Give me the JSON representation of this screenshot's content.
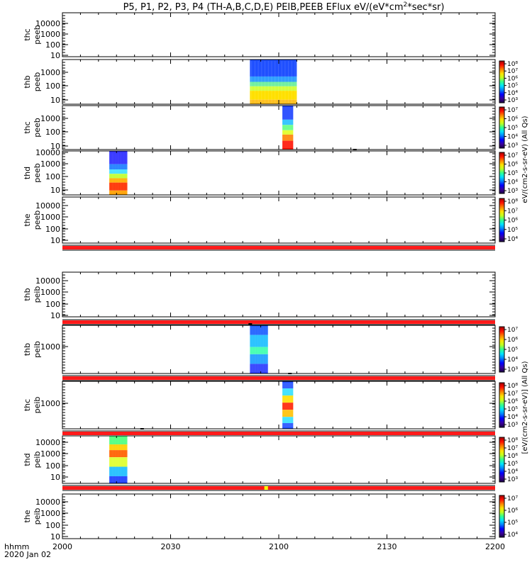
{
  "title": "P5, P1, P2, P3, P4 (TH-A,B,C,D,E) PEIB,PEEB EFlux eV/(eV*cm",
  "title_sup": "2",
  "title_tail": "*sec*sr)",
  "x_axis": {
    "ticks": [
      "2000",
      "2030",
      "2100",
      "2130",
      "2200"
    ],
    "label_line1": "hhmm",
    "label_line2": "2020 Jan 02"
  },
  "colors": {
    "flag_red": "#ff1a1a",
    "flag_yellow": "#ffff00"
  },
  "colorbar_labels": {
    "peeb": "eV/(cm2-s-sr-eV) (All Qs)",
    "peib": "[eV/(cm2-s-sr-eV)] (All Qs)"
  },
  "chart_data": {
    "type": "heatmap",
    "x_range_minutes": [
      0,
      120
    ],
    "panels": [
      {
        "label1": "thc",
        "label2": "peeb",
        "yticks": [
          "10000",
          "1000",
          "100",
          "10"
        ],
        "has_colorbar": false,
        "cbar_ticks": []
      },
      {
        "label1": "thb",
        "label2": "peeb",
        "yticks": [
          "1000",
          "100",
          "10"
        ],
        "has_colorbar": true,
        "cbar_ticks": [
          "10⁸",
          "10⁷",
          "10⁶",
          "10⁵",
          "10⁴",
          "10³"
        ],
        "spec": {
          "x_start": 52,
          "x_end": 65,
          "kind": "thb_peeb"
        }
      },
      {
        "label1": "thc",
        "label2": "peeb",
        "yticks": [
          "1000",
          "100",
          "10"
        ],
        "has_colorbar": true,
        "cbar_ticks": [
          "10⁷",
          "10⁶",
          "10⁵",
          "10⁴",
          "10³"
        ],
        "spec": {
          "x_start": 61,
          "x_end": 64,
          "kind": "thc_peeb"
        }
      },
      {
        "label1": "thd",
        "label2": "peeb",
        "yticks": [
          "10000",
          "1000",
          "100",
          "10"
        ],
        "has_colorbar": true,
        "cbar_ticks": [
          "10⁷",
          "10⁶",
          "10⁵",
          "10⁴",
          "10³"
        ],
        "spec": {
          "x_start": 13,
          "x_end": 18,
          "kind": "thd_peeb"
        }
      },
      {
        "label1": "the",
        "label2": "peeb",
        "yticks": [
          "10000",
          "1000",
          "100",
          "10"
        ],
        "has_colorbar": true,
        "cbar_ticks": [
          "10⁸",
          "10⁷",
          "10⁶",
          "10⁵",
          "10⁴"
        ]
      },
      {
        "label1": "thb",
        "label2": "peib",
        "yticks": [
          "10000",
          "1000",
          "100",
          "10"
        ],
        "has_colorbar": false,
        "cbar_ticks": []
      },
      {
        "label1": "thb",
        "label2": "peib",
        "yticks": [
          "1000"
        ],
        "has_colorbar": true,
        "cbar_ticks": [
          "10⁷",
          "10⁶",
          "10⁵",
          "10⁴",
          "10³"
        ],
        "spec": {
          "x_start": 52,
          "x_end": 57,
          "kind": "thb_peib"
        }
      },
      {
        "label1": "thc",
        "label2": "peib",
        "yticks": [
          "1000"
        ],
        "has_colorbar": true,
        "cbar_ticks": [
          "10⁸",
          "10⁷",
          "10⁶",
          "10⁵",
          "10⁴",
          "10³"
        ],
        "spec": {
          "x_start": 61,
          "x_end": 64,
          "kind": "thc_peib"
        }
      },
      {
        "label1": "thd",
        "label2": "peib",
        "yticks": [
          "10000",
          "1000",
          "100",
          "10"
        ],
        "has_colorbar": true,
        "cbar_ticks": [
          "10⁸",
          "10⁷",
          "10⁶",
          "10⁵",
          "10⁴",
          "10³"
        ],
        "spec": {
          "x_start": 13,
          "x_end": 18,
          "kind": "thd_peib"
        }
      },
      {
        "label1": "the",
        "label2": "peib",
        "yticks": [
          "10000",
          "1000",
          "100",
          "10"
        ],
        "has_colorbar": true,
        "cbar_ticks": [
          "10⁷",
          "10⁶",
          "10⁵",
          "10⁴"
        ]
      }
    ]
  }
}
